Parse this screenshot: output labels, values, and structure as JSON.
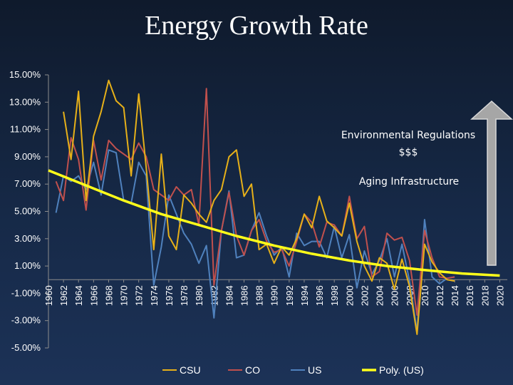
{
  "title": "Energy Growth Rate",
  "chart_data": {
    "type": "line",
    "title": "Energy Growth Rate",
    "xlabel": "",
    "ylabel": "",
    "x_range": [
      1960,
      2021
    ],
    "ylim": [
      -0.05,
      0.15
    ],
    "y_ticks": [
      "15.00%",
      "13.00%",
      "11.00%",
      "9.00%",
      "7.00%",
      "5.00%",
      "3.00%",
      "1.00%",
      "-1.00%",
      "-3.00%",
      "-5.00%"
    ],
    "y_tick_values": [
      0.15,
      0.13,
      0.11,
      0.09,
      0.07,
      0.05,
      0.03,
      0.01,
      -0.01,
      -0.03,
      -0.05
    ],
    "x_ticks": [
      "1960",
      "1962",
      "1964",
      "1966",
      "1968",
      "1970",
      "1972",
      "1974",
      "1976",
      "1978",
      "1980",
      "1982",
      "1984",
      "1986",
      "1988",
      "1990",
      "1992",
      "1994",
      "1996",
      "1998",
      "2000",
      "2002",
      "2004",
      "2006",
      "2008",
      "2010",
      "2012",
      "2014",
      "2016",
      "2018",
      "2020"
    ],
    "series": [
      {
        "name": "CSU",
        "color": "#e6b019",
        "x": [
          1962,
          1963,
          1964,
          1965,
          1966,
          1967,
          1968,
          1969,
          1970,
          1971,
          1972,
          1973,
          1974,
          1975,
          1976,
          1977,
          1978,
          1979,
          1980,
          1981,
          1982,
          1983,
          1984,
          1985,
          1986,
          1987,
          1988,
          1989,
          1990,
          1991,
          1992,
          1993,
          1994,
          1995,
          1996,
          1997,
          1998,
          1999,
          2000,
          2001,
          2002,
          2003,
          2004,
          2005,
          2006,
          2007,
          2008,
          2009,
          2010,
          2011,
          2012,
          2013,
          2014
        ],
        "values": [
          0.123,
          0.088,
          0.138,
          0.058,
          0.105,
          0.123,
          0.146,
          0.131,
          0.126,
          0.076,
          0.136,
          0.082,
          0.022,
          0.092,
          0.032,
          0.022,
          0.062,
          0.056,
          0.048,
          0.042,
          0.058,
          0.066,
          0.09,
          0.095,
          0.061,
          0.07,
          0.022,
          0.026,
          0.012,
          0.024,
          0.018,
          0.03,
          0.048,
          0.038,
          0.061,
          0.043,
          0.038,
          0.032,
          0.056,
          0.028,
          0.01,
          -0.001,
          0.016,
          0.012,
          -0.007,
          0.015,
          -0.005,
          -0.04,
          0.026,
          0.013,
          0.005,
          0.0,
          -0.001
        ]
      },
      {
        "name": "CO",
        "color": "#c0504d",
        "x": [
          1961,
          1962,
          1963,
          1964,
          1965,
          1966,
          1967,
          1968,
          1969,
          1970,
          1971,
          1972,
          1973,
          1974,
          1975,
          1976,
          1977,
          1978,
          1979,
          1980,
          1981,
          1982,
          1983,
          1984,
          1985,
          1986,
          1987,
          1988,
          1989,
          1990,
          1991,
          1992,
          1993,
          1994,
          1995,
          1996,
          1997,
          1998,
          1999,
          2000,
          2001,
          2002,
          2003,
          2004,
          2005,
          2006,
          2007,
          2008,
          2009,
          2010,
          2011,
          2012,
          2013,
          2014
        ],
        "values": [
          0.072,
          0.058,
          0.104,
          0.088,
          0.051,
          0.102,
          0.073,
          0.102,
          0.096,
          0.092,
          0.088,
          0.1,
          0.09,
          0.066,
          0.062,
          0.058,
          0.068,
          0.062,
          0.066,
          0.04,
          0.14,
          -0.004,
          0.036,
          0.064,
          0.032,
          0.018,
          0.036,
          0.044,
          0.028,
          0.02,
          0.022,
          0.01,
          0.028,
          0.048,
          0.042,
          0.024,
          0.042,
          0.04,
          0.032,
          0.061,
          0.03,
          0.039,
          0.002,
          0.006,
          0.034,
          0.029,
          0.031,
          0.014,
          -0.026,
          0.036,
          0.016,
          0.002,
          0.001,
          0.002
        ]
      },
      {
        "name": "US",
        "color": "#4f81bd",
        "x": [
          1961,
          1962,
          1963,
          1964,
          1965,
          1966,
          1967,
          1968,
          1969,
          1970,
          1971,
          1972,
          1973,
          1974,
          1975,
          1976,
          1977,
          1978,
          1979,
          1980,
          1981,
          1982,
          1983,
          1984,
          1985,
          1986,
          1987,
          1988,
          1989,
          1990,
          1991,
          1992,
          1993,
          1994,
          1995,
          1996,
          1997,
          1998,
          1999,
          2000,
          2001,
          2002,
          2003,
          2004,
          2005,
          2006,
          2007,
          2008,
          2009,
          2010,
          2011,
          2012,
          2013,
          2014
        ],
        "values": [
          0.049,
          0.076,
          0.072,
          0.076,
          0.066,
          0.086,
          0.062,
          0.095,
          0.093,
          0.058,
          0.056,
          0.086,
          0.076,
          -0.004,
          0.024,
          0.062,
          0.048,
          0.034,
          0.026,
          0.012,
          0.025,
          -0.028,
          0.036,
          0.065,
          0.016,
          0.018,
          0.036,
          0.049,
          0.032,
          0.018,
          0.024,
          0.002,
          0.034,
          0.025,
          0.028,
          0.028,
          0.016,
          0.039,
          0.016,
          0.033,
          -0.006,
          0.021,
          0.004,
          0.014,
          0.03,
          0.002,
          0.026,
          -0.001,
          -0.038,
          0.044,
          0.002,
          -0.003,
          0.001,
          0.002
        ]
      }
    ],
    "trendline": {
      "name": "Poly.  (US)",
      "color": "#ffff1a",
      "x": [
        1960,
        1965,
        1970,
        1975,
        1980,
        1985,
        1990,
        1995,
        2000,
        2005,
        2010,
        2015,
        2020
      ],
      "values": [
        0.08,
        0.069,
        0.058,
        0.048,
        0.04,
        0.032,
        0.025,
        0.019,
        0.014,
        0.01,
        0.007,
        0.0045,
        0.003
      ]
    },
    "annotations": [
      "Environmental Regulations",
      "$$$",
      "Aging Infrastructure"
    ],
    "arrow": {
      "direction": "up",
      "color": "#a6a6a6"
    },
    "legend_position": "bottom-center"
  }
}
